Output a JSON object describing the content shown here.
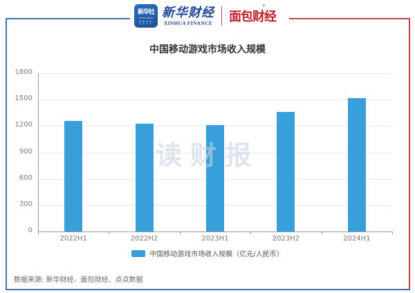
{
  "header": {
    "app_icon_text": "新华社",
    "app_icon_sub": "XINHUA NEWS",
    "xinhua_finance_cn": "新华财经",
    "xinhua_finance_en": "XINHUA FINANCE",
    "mianbao_finance": "面包财经",
    "registered_mark": "®"
  },
  "colors": {
    "bar": "#389fdb",
    "frame_blue": "#4a6fa8",
    "frame_red": "#c2404d",
    "brand_red": "#c0202e",
    "brand_blue": "#1e4a94"
  },
  "watermark": "读财报",
  "chart_data": {
    "type": "bar",
    "title": "中国移动游戏市场收入规模",
    "categories": [
      "2022H1",
      "2022H2",
      "2023H1",
      "2023H2",
      "2024H1"
    ],
    "series": [
      {
        "name": "中国移动游戏市场收入规模（亿元/人民币）",
        "values": [
          1255,
          1227,
          1211,
          1359,
          1516
        ],
        "color": "#389fdb"
      }
    ],
    "xlabel": "",
    "ylabel": "",
    "ylim": [
      0,
      1800
    ],
    "yticks": [
      "1800",
      "1500",
      "1200",
      "900",
      "600",
      "300",
      "0"
    ],
    "grid": true,
    "legend_position": "bottom"
  },
  "source": "数据来源: 新华财经、面包财经、点点数据"
}
